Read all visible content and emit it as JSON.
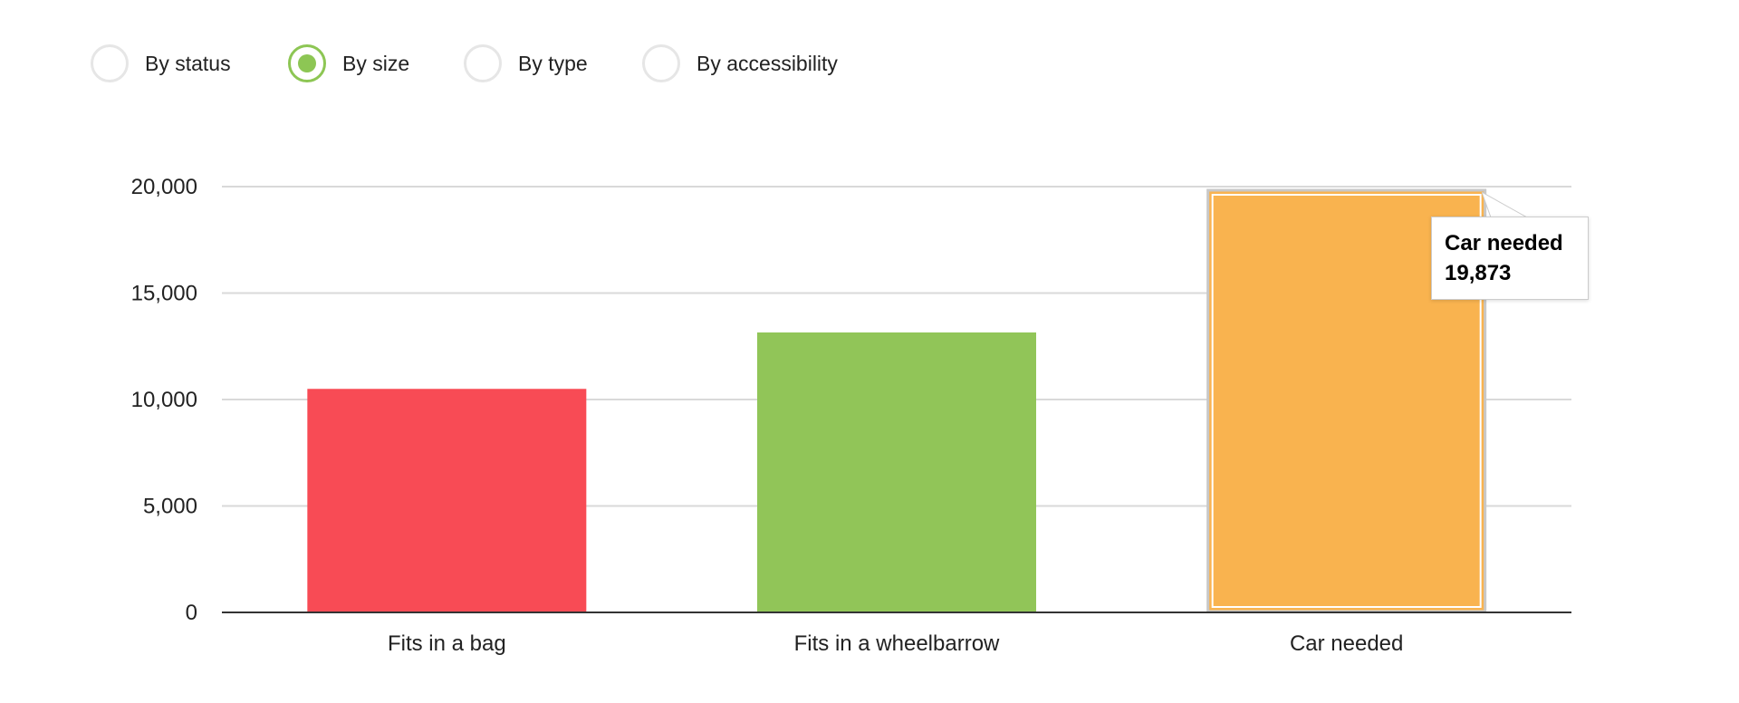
{
  "filters": {
    "options": [
      {
        "label": "By status",
        "selected": false
      },
      {
        "label": "By size",
        "selected": true
      },
      {
        "label": "By type",
        "selected": false
      },
      {
        "label": "By accessibility",
        "selected": false
      }
    ]
  },
  "colors": {
    "accent": "#8dc654",
    "radio_border": "#e6e6e6",
    "bar_bag": "#f84b55",
    "bar_wheelbarrow": "#91c558",
    "bar_car": "#f9b34f"
  },
  "chart_data": {
    "type": "bar",
    "categories": [
      "Fits in a bag",
      "Fits in a wheelbarrow",
      "Car needed"
    ],
    "values": [
      10500,
      13150,
      19873
    ],
    "ylim": [
      0,
      20000
    ],
    "yticks": [
      0,
      5000,
      10000,
      15000,
      20000
    ],
    "ytick_labels": [
      "0",
      "5,000",
      "10,000",
      "15,000",
      "20,000"
    ],
    "grid": true,
    "legend": "none",
    "highlighted_index": 2
  },
  "tooltip": {
    "category": "Car needed",
    "value": "19,873"
  }
}
